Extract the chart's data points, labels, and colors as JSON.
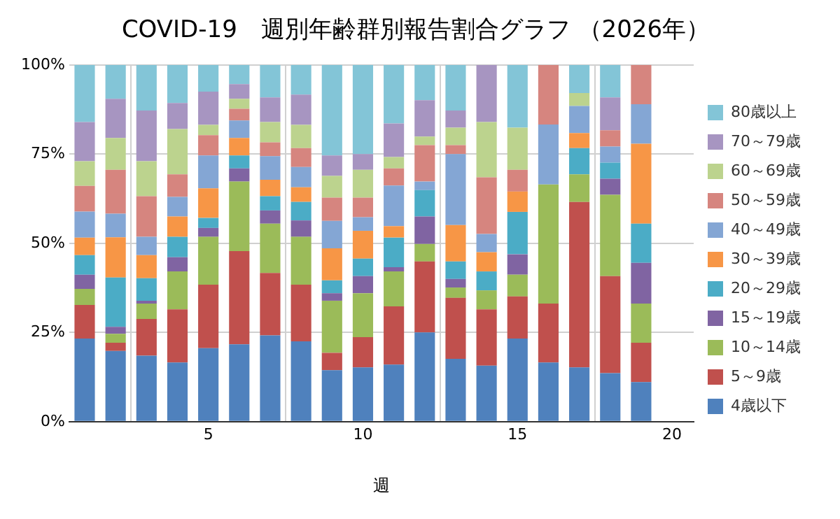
{
  "chart_data": {
    "type": "bar",
    "stacked": true,
    "title": "COVID-19　週別年齢群別報告割合グラフ （2026年）",
    "xlabel": "週",
    "x": [
      1,
      2,
      3,
      4,
      5,
      6,
      7,
      8,
      9,
      10,
      11,
      12,
      13,
      14,
      15,
      16,
      17,
      18,
      19
    ],
    "xlim": [
      0.5,
      20.7
    ],
    "xticks": [
      5,
      10,
      15,
      20
    ],
    "ylim": [
      0,
      100
    ],
    "yticks": [
      {
        "value": 0,
        "label": "0%"
      },
      {
        "value": 25,
        "label": "25%"
      },
      {
        "value": 50,
        "label": "50%"
      },
      {
        "value": 75,
        "label": "75%"
      },
      {
        "value": 100,
        "label": "100%"
      }
    ],
    "grid": true,
    "legend": "right",
    "series": [
      {
        "name": "4歳以下",
        "color": "#4f81bd",
        "values": [
          23.3,
          19.8,
          18.5,
          16.6,
          20.6,
          21.7,
          24.2,
          22.5,
          14.4,
          15.2,
          16.0,
          25.0,
          17.6,
          15.7,
          23.3,
          16.6,
          15.2,
          13.6,
          11.1
        ]
      },
      {
        "name": "5～9歳",
        "color": "#c0504d",
        "values": [
          9.4,
          2.3,
          10.3,
          14.9,
          17.8,
          26.1,
          17.5,
          15.9,
          4.9,
          8.5,
          16.3,
          19.9,
          17.1,
          15.8,
          11.8,
          16.5,
          46.4,
          27.2,
          11.0
        ]
      },
      {
        "name": "10～14歳",
        "color": "#9bbb59",
        "values": [
          4.5,
          2.5,
          4.3,
          10.6,
          13.4,
          19.5,
          13.8,
          13.4,
          14.6,
          12.3,
          9.8,
          4.9,
          2.9,
          5.3,
          6.1,
          33.4,
          7.7,
          22.8,
          11.0
        ]
      },
      {
        "name": "15～19歳",
        "color": "#8064a2",
        "values": [
          4.0,
          2.0,
          0.8,
          4.0,
          2.5,
          3.7,
          3.7,
          4.6,
          2.1,
          4.8,
          1.2,
          7.7,
          2.4,
          0,
          5.7,
          0,
          0,
          4.5,
          11.4
        ]
      },
      {
        "name": "20～29歳",
        "color": "#4bacc6",
        "values": [
          5.5,
          13.8,
          6.3,
          5.7,
          2.8,
          3.6,
          4.0,
          5.2,
          3.6,
          4.9,
          8.3,
          7.4,
          4.9,
          5.3,
          11.9,
          0,
          7.4,
          4.5,
          11.0
        ]
      },
      {
        "name": "30～39歳",
        "color": "#f79646",
        "values": [
          4.9,
          11.3,
          6.5,
          5.7,
          8.3,
          4.9,
          4.6,
          4.1,
          9.0,
          7.8,
          3.2,
          0,
          10.2,
          5.4,
          5.7,
          0,
          4.2,
          0,
          22.4
        ]
      },
      {
        "name": "40～49歳",
        "color": "#84a6d4",
        "values": [
          7.3,
          6.6,
          5.1,
          5.5,
          9.2,
          4.9,
          6.6,
          5.7,
          7.7,
          3.8,
          11.4,
          2.4,
          19.9,
          5.1,
          0,
          16.8,
          7.6,
          4.5,
          11.1
        ]
      },
      {
        "name": "50～59歳",
        "color": "#d6857f",
        "values": [
          7.2,
          12.3,
          11.4,
          6.3,
          5.7,
          3.3,
          3.9,
          5.3,
          6.5,
          5.5,
          4.8,
          10.2,
          2.5,
          15.9,
          6.1,
          16.7,
          0,
          4.6,
          11.0
        ]
      },
      {
        "name": "60～69歳",
        "color": "#bcd38e",
        "values": [
          6.9,
          8.9,
          9.8,
          12.7,
          2.9,
          2.8,
          5.7,
          6.5,
          6.1,
          7.8,
          3.2,
          2.4,
          4.9,
          15.5,
          11.8,
          0,
          3.6,
          0,
          0
        ]
      },
      {
        "name": "70～79歳",
        "color": "#a795c1",
        "values": [
          11.0,
          11.0,
          14.2,
          7.3,
          9.3,
          4.1,
          6.9,
          8.5,
          5.7,
          4.4,
          9.4,
          10.2,
          4.8,
          16.0,
          0,
          0,
          0,
          9.2,
          0
        ]
      },
      {
        "name": "80歳以上",
        "color": "#83c5d7",
        "values": [
          16.0,
          9.5,
          12.8,
          10.7,
          7.5,
          5.4,
          9.1,
          8.3,
          25.4,
          25.0,
          16.4,
          9.9,
          12.8,
          0,
          17.6,
          0,
          7.9,
          9.1,
          0
        ]
      }
    ]
  }
}
